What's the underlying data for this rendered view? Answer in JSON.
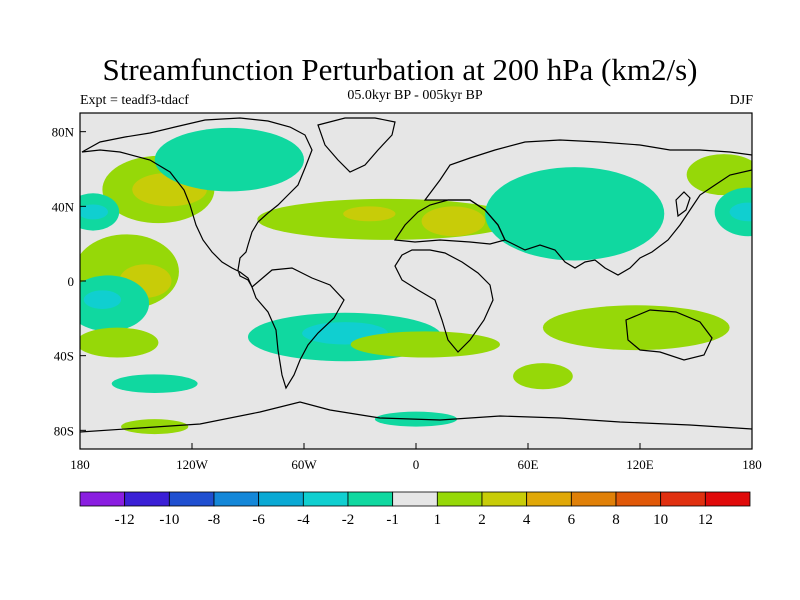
{
  "title": "Streamfunction Perturbation at 200 hPa (km2/s)",
  "subtitle_left": "Expt = teadf3-tdacf",
  "subtitle_center": "05.0kyr BP - 005kyr BP",
  "subtitle_right": "DJF",
  "chart_data": {
    "type": "heatmap",
    "projection": "cylindrical equidistant",
    "x_ticks": [
      "180",
      "120W",
      "60W",
      "0",
      "60E",
      "120E",
      "180"
    ],
    "y_ticks": [
      "80N",
      "40N",
      "0",
      "40S",
      "80S"
    ],
    "xlim": [
      -180,
      180
    ],
    "ylim": [
      -90,
      90
    ],
    "colorbar": {
      "labels": [
        "-12",
        "-10",
        "-8",
        "-6",
        "-4",
        "-2",
        "-1",
        "1",
        "2",
        "4",
        "6",
        "8",
        "10",
        "12"
      ],
      "colors": [
        "#8a1ee0",
        "#3b20d6",
        "#1f4fd0",
        "#1487d8",
        "#0aa9d4",
        "#10cfd0",
        "#10d8a0",
        "#e6e6e6",
        "#96d808",
        "#c8cc08",
        "#e0a808",
        "#e08008",
        "#e05808",
        "#e03010",
        "#e00a0a"
      ]
    },
    "anomalies": [
      {
        "level": "1",
        "lon": 165,
        "lat": 57,
        "rx": 20,
        "ry": 11
      },
      {
        "level": "1",
        "lon": -138,
        "lat": 49,
        "rx": 30,
        "ry": 18
      },
      {
        "level": "2",
        "lon": -132,
        "lat": 49,
        "rx": 20,
        "ry": 9
      },
      {
        "level": "-1",
        "lon": -100,
        "lat": 65,
        "rx": 40,
        "ry": 17
      },
      {
        "level": "-1",
        "lon": -173,
        "lat": 37,
        "rx": 14,
        "ry": 10
      },
      {
        "level": "-2",
        "lon": -173,
        "lat": 37,
        "rx": 8,
        "ry": 4
      },
      {
        "level": "1",
        "lon": -15,
        "lat": 33,
        "rx": 70,
        "ry": 11
      },
      {
        "level": "2",
        "lon": -25,
        "lat": 36,
        "rx": 14,
        "ry": 4
      },
      {
        "level": "2",
        "lon": 20,
        "lat": 32,
        "rx": 17,
        "ry": 8
      },
      {
        "level": "-1",
        "lon": 85,
        "lat": 36,
        "rx": 48,
        "ry": 25
      },
      {
        "level": "-1",
        "lon": 178,
        "lat": 37,
        "rx": 18,
        "ry": 13
      },
      {
        "level": "-2",
        "lon": 178,
        "lat": 37,
        "rx": 10,
        "ry": 5
      },
      {
        "level": "1",
        "lon": -155,
        "lat": 5,
        "rx": 28,
        "ry": 20
      },
      {
        "level": "2",
        "lon": -145,
        "lat": 0,
        "rx": 14,
        "ry": 9
      },
      {
        "level": "-1",
        "lon": -165,
        "lat": -12,
        "rx": 22,
        "ry": 15
      },
      {
        "level": "-2",
        "lon": -168,
        "lat": -10,
        "rx": 10,
        "ry": 5
      },
      {
        "level": "1",
        "lon": -160,
        "lat": -33,
        "rx": 22,
        "ry": 8
      },
      {
        "level": "-1",
        "lon": -38,
        "lat": -30,
        "rx": 52,
        "ry": 13
      },
      {
        "level": "-2",
        "lon": -38,
        "lat": -28,
        "rx": 23,
        "ry": 6
      },
      {
        "level": "1",
        "lon": 5,
        "lat": -34,
        "rx": 40,
        "ry": 7
      },
      {
        "level": "1",
        "lon": 118,
        "lat": -25,
        "rx": 50,
        "ry": 12
      },
      {
        "level": "1",
        "lon": 68,
        "lat": -51,
        "rx": 16,
        "ry": 7
      },
      {
        "level": "-1",
        "lon": -140,
        "lat": -55,
        "rx": 23,
        "ry": 5
      },
      {
        "level": "1",
        "lon": -140,
        "lat": -78,
        "rx": 18,
        "ry": 4
      },
      {
        "level": "-1",
        "lon": 0,
        "lat": -74,
        "rx": 22,
        "ry": 4
      }
    ]
  }
}
